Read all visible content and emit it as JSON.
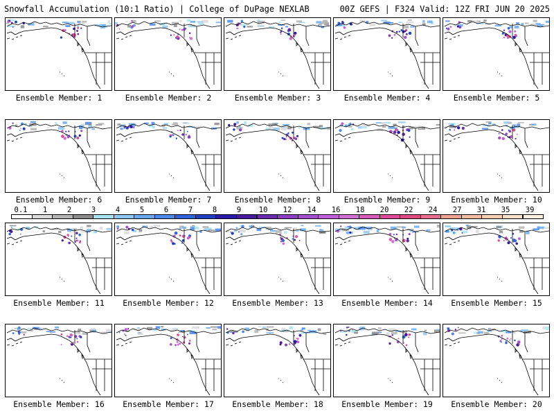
{
  "header": {
    "left": "Snowfall Accumulation (10:1 Ratio) | College of DuPage NEXLAB",
    "right": "00Z GEFS | F324 Valid: 12Z FRI JUN 20 2025"
  },
  "map": {
    "domain": "Northeast Pacific / Alaska / Western Canada / Pacific Northwest",
    "land_color": "#ffffff",
    "coast_color": "#000000",
    "background_color": "#ffffff"
  },
  "members": [
    {
      "label": "Ensemble Member: 1"
    },
    {
      "label": "Ensemble Member: 2"
    },
    {
      "label": "Ensemble Member: 3"
    },
    {
      "label": "Ensemble Member: 4"
    },
    {
      "label": "Ensemble Member: 5"
    },
    {
      "label": "Ensemble Member: 6"
    },
    {
      "label": "Ensemble Member: 7"
    },
    {
      "label": "Ensemble Member: 8"
    },
    {
      "label": "Ensemble Member: 9"
    },
    {
      "label": "Ensemble Member: 10"
    },
    {
      "label": "Ensemble Member: 11"
    },
    {
      "label": "Ensemble Member: 12"
    },
    {
      "label": "Ensemble Member: 13"
    },
    {
      "label": "Ensemble Member: 14"
    },
    {
      "label": "Ensemble Member: 15"
    },
    {
      "label": "Ensemble Member: 16"
    },
    {
      "label": "Ensemble Member: 17"
    },
    {
      "label": "Ensemble Member: 18"
    },
    {
      "label": "Ensemble Member: 19"
    },
    {
      "label": "Ensemble Member: 20"
    }
  ],
  "colorbar": {
    "labels": [
      "0.1",
      "1",
      "2",
      "3",
      "4",
      "5",
      "6",
      "7",
      "8",
      "9",
      "10",
      "12",
      "14",
      "16",
      "18",
      "20",
      "22",
      "24",
      "27",
      "31",
      "35",
      "39"
    ],
    "colors": [
      "#ffffff",
      "#d9d9d9",
      "#b3b3b3",
      "#8c8c8c",
      "#a6e3f0",
      "#8fc8f5",
      "#6aa9f0",
      "#4a88ea",
      "#2f63d9",
      "#1f3fc4",
      "#2a1aa8",
      "#4a1a9c",
      "#6a2bb0",
      "#8a3fc4",
      "#a64fd0",
      "#c060d8",
      "#d070d0",
      "#d85cb8",
      "#e04a9c",
      "#e04a80",
      "#e8708c",
      "#f0a090",
      "#f5bba0",
      "#f8d0b0",
      "#fbe0c8",
      "#fff0e0"
    ]
  }
}
